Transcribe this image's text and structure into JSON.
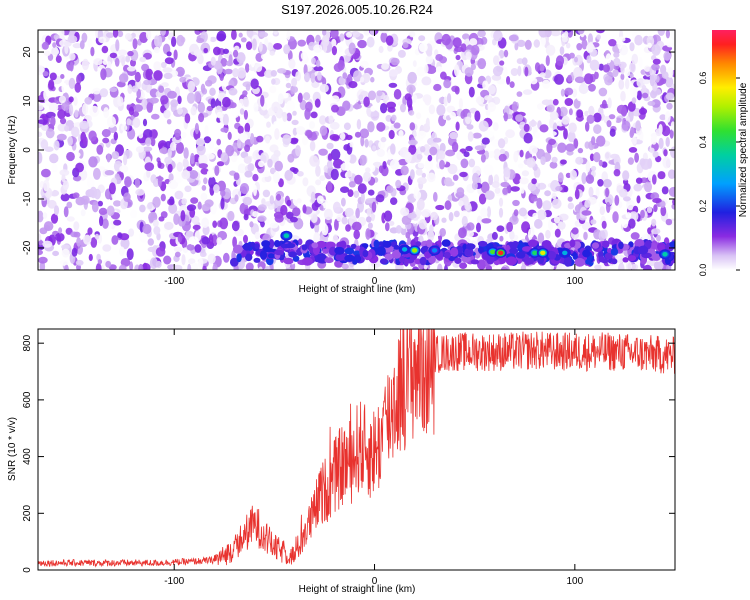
{
  "figure": {
    "title": "S197.2026.005.10.26.R24"
  },
  "chart_data": [
    {
      "type": "heatmap",
      "title": "S197.2026.005.10.26.R24",
      "xlabel": "Height of straight line (km)",
      "ylabel": "Frequency (Hz)",
      "xlim": [
        -168,
        150
      ],
      "ylim": [
        -24.5,
        24.5
      ],
      "xticks": [
        -100,
        0,
        100
      ],
      "xtick_labels": [
        "-100",
        "0",
        "100"
      ],
      "yticks": [
        20,
        10,
        0,
        -10,
        -20
      ],
      "ytick_labels": [
        "20",
        "10",
        "0",
        "-10",
        "-20"
      ],
      "colorbar": {
        "label": "Normalized spectral amplitude",
        "range": [
          0,
          0.75
        ],
        "ticks": [
          0.0,
          0.2,
          0.4,
          0.6
        ],
        "tick_labels": [
          "0.0",
          "0.2",
          "0.4",
          "0.6"
        ]
      },
      "description_values": {
        "background_amplitude_range": [
          0.0,
          0.12
        ],
        "signal_band_frequency_hz": -21,
        "signal_band_x_start_km": -70,
        "hotspots": [
          {
            "x": -44,
            "y": -17.5,
            "amp": 0.35
          },
          {
            "x": 15,
            "y": -20.3,
            "amp": 0.3
          },
          {
            "x": 20,
            "y": -20.5,
            "amp": 0.5
          },
          {
            "x": 30,
            "y": -20.5,
            "amp": 0.25
          },
          {
            "x": 59,
            "y": -20.8,
            "amp": 0.45
          },
          {
            "x": 63,
            "y": -21.0,
            "amp": 0.7
          },
          {
            "x": 80,
            "y": -21.0,
            "amp": 0.4
          },
          {
            "x": 84,
            "y": -21.0,
            "amp": 0.55
          },
          {
            "x": 95,
            "y": -21.0,
            "amp": 0.3
          },
          {
            "x": 145,
            "y": -21.3,
            "amp": 0.35
          }
        ]
      }
    },
    {
      "type": "line",
      "xlabel": "Height of straight line (km)",
      "ylabel": "SNR (10 * v/v)",
      "xlim": [
        -168,
        150
      ],
      "ylim": [
        0,
        850
      ],
      "xticks": [
        -100,
        0,
        100
      ],
      "xtick_labels": [
        "-100",
        "0",
        "100"
      ],
      "yticks": [
        0,
        200,
        400,
        600,
        800
      ],
      "ytick_labels": [
        "0",
        "200",
        "400",
        "600",
        "800"
      ],
      "series": [
        {
          "name": "SNR",
          "color": "#e8322e",
          "x": [
            -168,
            -150,
            -130,
            -110,
            -90,
            -80,
            -75,
            -70,
            -65,
            -62,
            -60,
            -58,
            -55,
            -50,
            -45,
            -40,
            -35,
            -30,
            -28,
            -25,
            -22,
            -20,
            -18,
            -15,
            -12,
            -10,
            -8,
            -5,
            -2,
            0,
            3,
            5,
            8,
            10,
            12,
            15,
            20,
            25,
            30,
            40,
            50,
            60,
            70,
            80,
            90,
            100,
            110,
            120,
            130,
            140,
            150
          ],
          "values": [
            25,
            25,
            25,
            25,
            30,
            35,
            50,
            80,
            120,
            150,
            160,
            150,
            120,
            80,
            60,
            50,
            130,
            200,
            250,
            280,
            300,
            330,
            350,
            380,
            380,
            400,
            440,
            420,
            410,
            420,
            450,
            500,
            560,
            600,
            640,
            680,
            720,
            740,
            760,
            770,
            770,
            770,
            770,
            775,
            770,
            770,
            770,
            770,
            765,
            760,
            755
          ]
        }
      ]
    }
  ],
  "colors": {
    "line": "#e8322e",
    "axis": "#000000"
  }
}
